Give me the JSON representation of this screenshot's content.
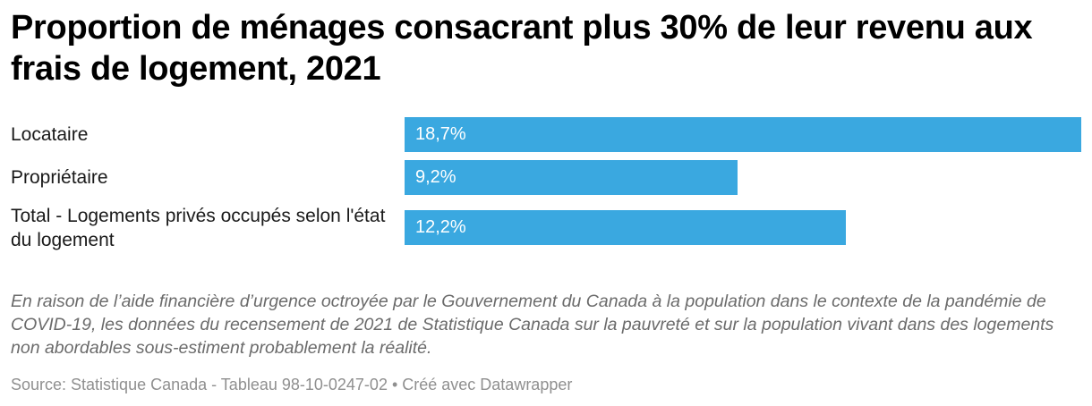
{
  "title": "Proportion de ménages consacrant plus 30% de leur revenu aux frais de logement, 2021",
  "note": "En raison de l’aide financière d’urgence octroyée par le Gouvernement du Canada à la population dans le contexte de la pandémie de COVID-19, les données du recensement de 2021 de Statistique Canada sur la pauvreté et sur la population vivant dans des logements non abordables sous-estiment probablement la réalité.",
  "source": "Source: Statistique Canada - Tableau 98-10-0247-02 • Créé avec Datawrapper",
  "colors": {
    "bar": "#3aa8e0",
    "note": "#6b6b6b",
    "source": "#8f8f8f"
  },
  "chart_data": {
    "type": "bar",
    "orientation": "horizontal",
    "title": "Proportion de ménages consacrant plus 30% de leur revenu aux frais de logement, 2021",
    "categories": [
      "Locataire",
      "Propriétaire",
      "Total - Logements privés occupés selon l'état du logement"
    ],
    "values": [
      18.7,
      9.2,
      12.2
    ],
    "value_labels": [
      "18,7%",
      "9,2%",
      "12,2%"
    ],
    "unit": "%",
    "xlim": [
      0,
      18.7
    ],
    "grid": false,
    "legend": "none"
  }
}
